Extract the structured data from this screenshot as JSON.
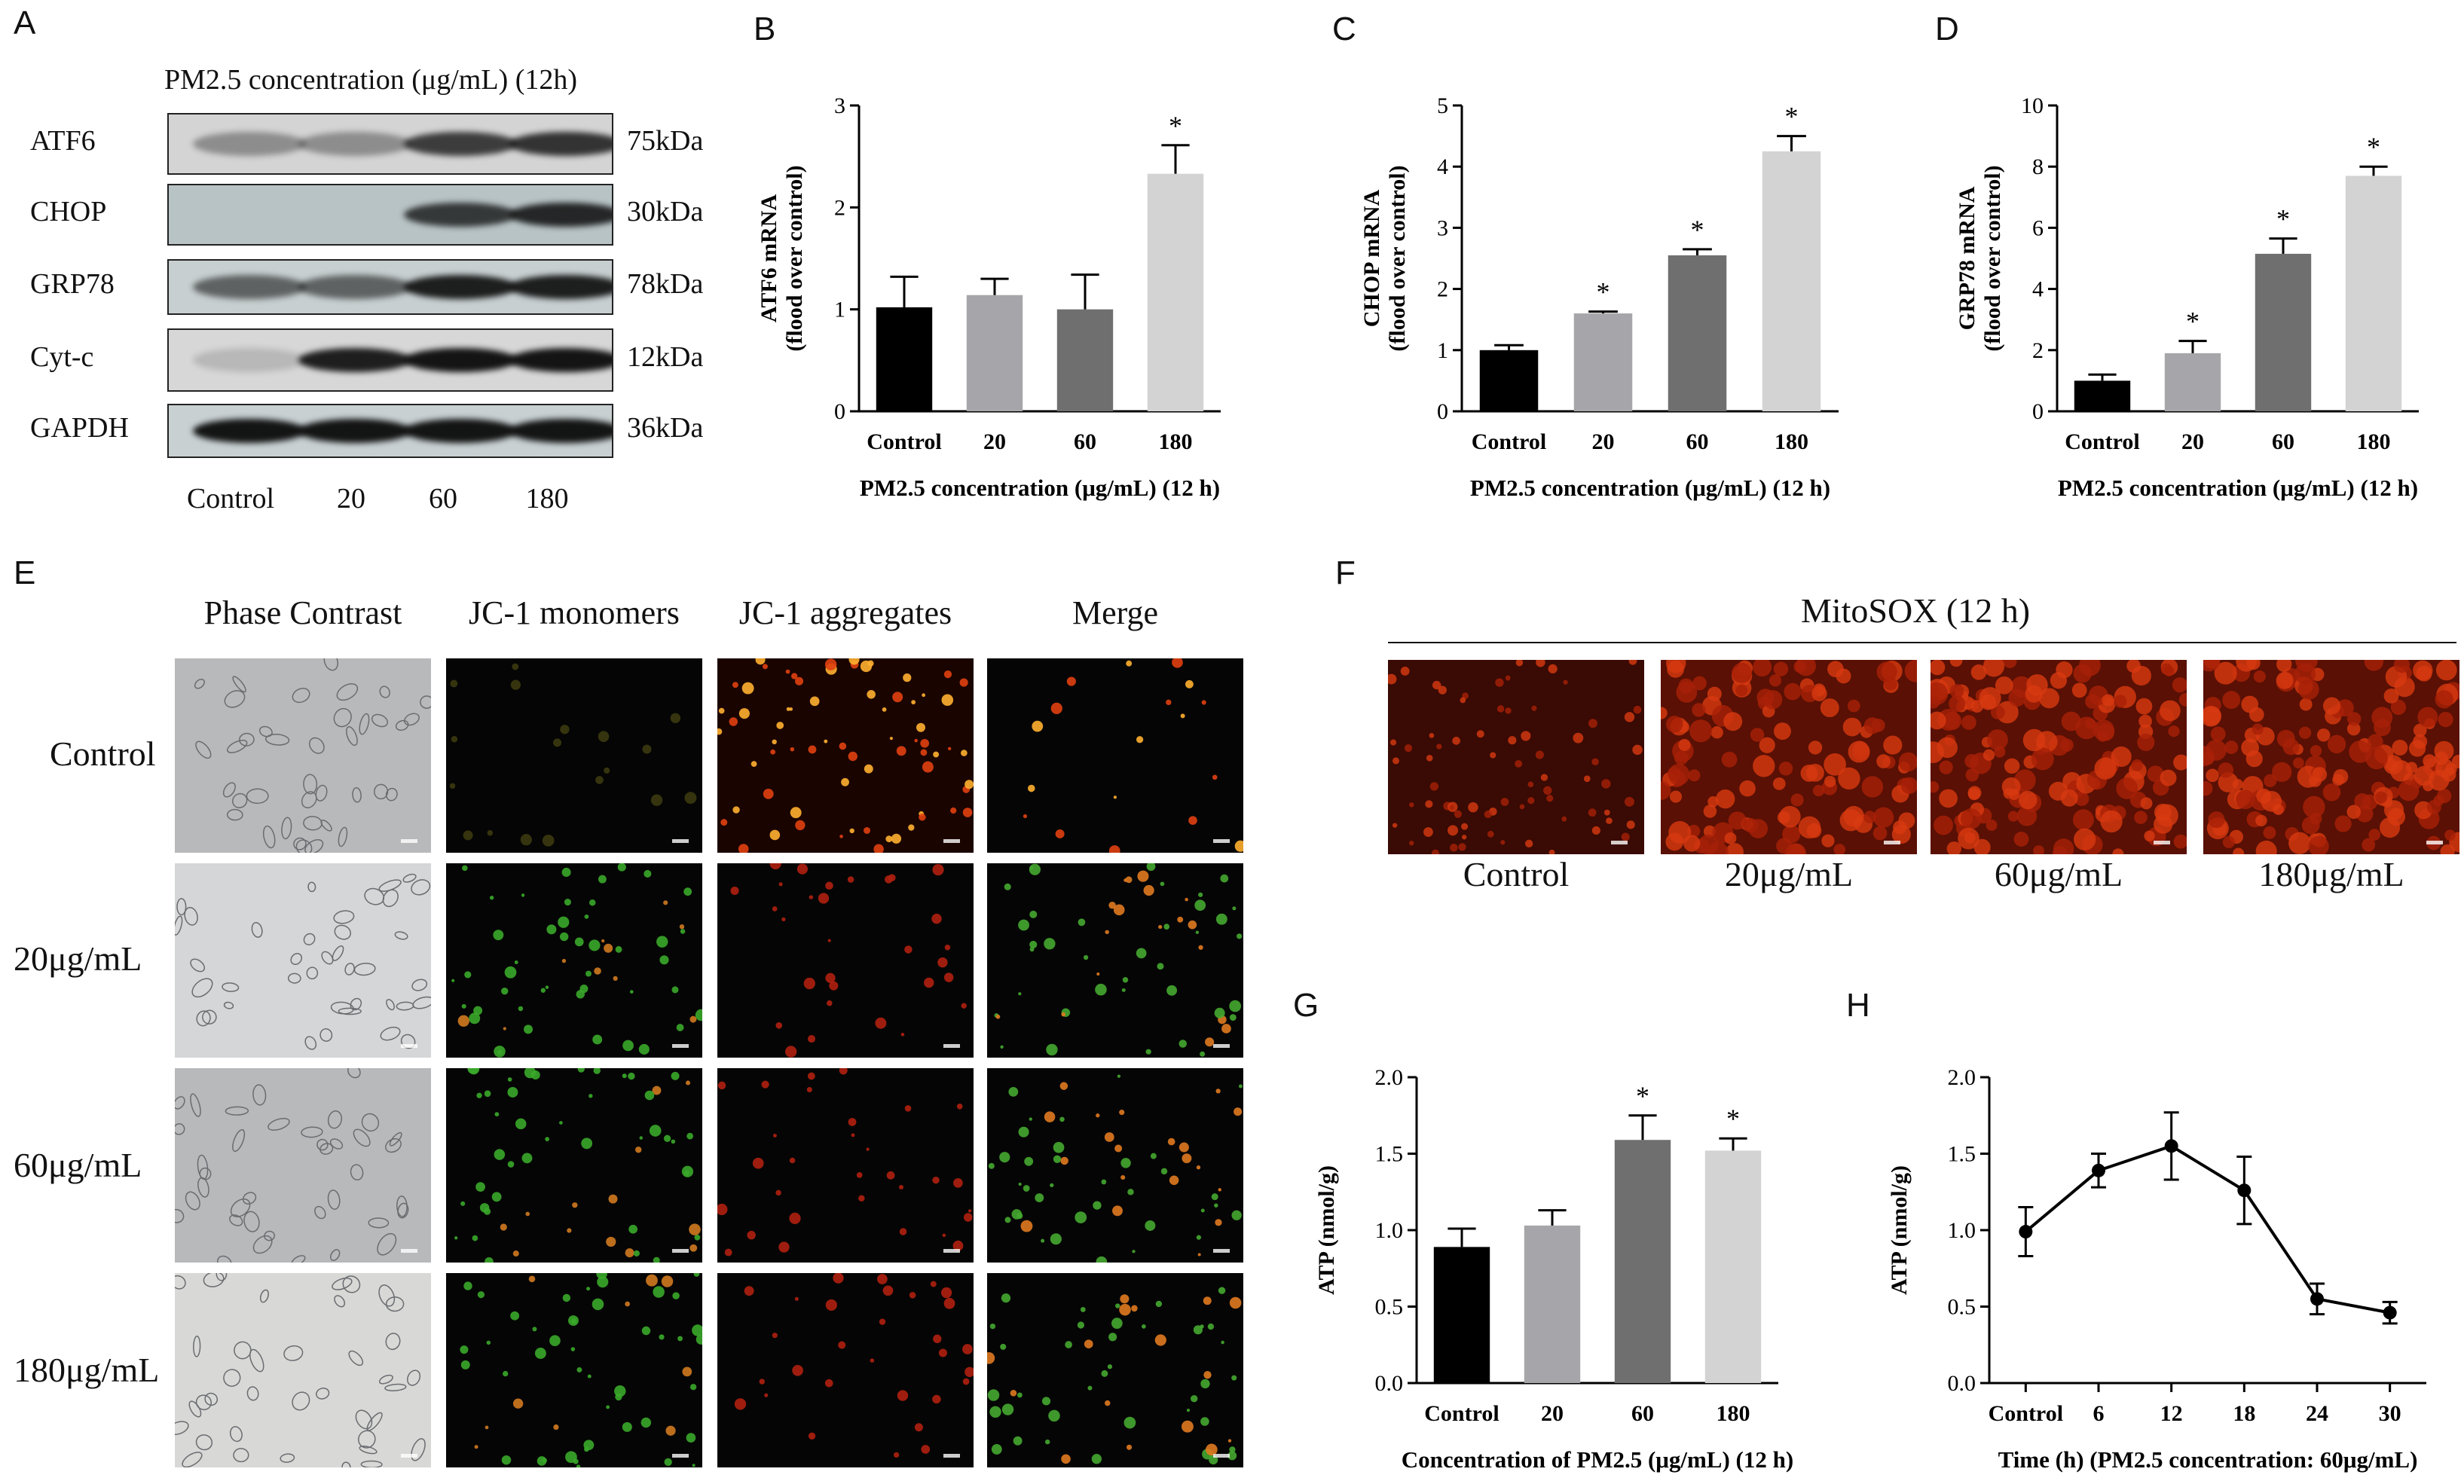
{
  "panels": {
    "A": "A",
    "B": "B",
    "C": "C",
    "D": "D",
    "E": "E",
    "F": "F",
    "G": "G",
    "H": "H"
  },
  "western_blot": {
    "title": "PM2.5 concentration (μg/mL) (12h)",
    "lanes": [
      "Control",
      "20",
      "60",
      "180"
    ],
    "rows": [
      {
        "protein": "ATF6",
        "kda": "75kDa",
        "intensity": [
          0.35,
          0.35,
          0.75,
          0.8
        ]
      },
      {
        "protein": "CHOP",
        "kda": "30kDa",
        "intensity": [
          0.0,
          0.0,
          0.75,
          0.85
        ]
      },
      {
        "protein": "GRP78",
        "kda": "78kDa",
        "intensity": [
          0.55,
          0.55,
          0.9,
          0.9
        ]
      },
      {
        "protein": "Cyt-c",
        "kda": "12kDa",
        "intensity": [
          0.15,
          0.9,
          0.95,
          0.95
        ]
      },
      {
        "protein": "GAPDH",
        "kda": "36kDa",
        "intensity": [
          0.95,
          0.95,
          0.95,
          0.95
        ]
      }
    ]
  },
  "jc1": {
    "columns": [
      "Phase Contrast",
      "JC-1 monomers",
      "JC-1 aggregates",
      "Merge"
    ],
    "rows": [
      "Control",
      "20μg/mL",
      "60μg/mL",
      "180μg/mL"
    ]
  },
  "mitosox": {
    "title": "MitoSOX (12 h)",
    "labels": [
      "Control",
      "20μg/mL",
      "60μg/mL",
      "180μg/mL"
    ]
  },
  "chart_data": [
    {
      "id": "B",
      "type": "bar",
      "categories": [
        "Control",
        "20",
        "60",
        "180"
      ],
      "values": [
        1.02,
        1.14,
        1.0,
        2.33
      ],
      "errors": [
        0.3,
        0.16,
        0.34,
        0.28
      ],
      "significant": [
        false,
        false,
        false,
        true
      ],
      "ylabel": "ATF6 mRNA",
      "ylabel2": "(flood over control)",
      "xlabel": "PM2.5 concentration (μg/mL) (12 h)",
      "ylim": [
        0,
        3
      ],
      "yticks": [
        0,
        1,
        2,
        3
      ],
      "colors": [
        "#000000",
        "#a6a6aa",
        "#6f6f6f",
        "#d3d3d3"
      ]
    },
    {
      "id": "C",
      "type": "bar",
      "categories": [
        "Control",
        "20",
        "60",
        "180"
      ],
      "values": [
        1.0,
        1.6,
        2.55,
        4.25
      ],
      "errors": [
        0.08,
        0.03,
        0.1,
        0.25
      ],
      "significant": [
        false,
        true,
        true,
        true
      ],
      "ylabel": "CHOP mRNA",
      "ylabel2": "(flood over control)",
      "xlabel": "PM2.5 concentration (μg/mL) (12 h)",
      "ylim": [
        0,
        5
      ],
      "yticks": [
        0,
        1,
        2,
        3,
        4,
        5
      ],
      "colors": [
        "#000000",
        "#a6a6aa",
        "#6f6f6f",
        "#d3d3d3"
      ]
    },
    {
      "id": "D",
      "type": "bar",
      "categories": [
        "Control",
        "20",
        "60",
        "180"
      ],
      "values": [
        1.0,
        1.9,
        5.15,
        7.7
      ],
      "errors": [
        0.2,
        0.4,
        0.5,
        0.3
      ],
      "significant": [
        false,
        true,
        true,
        true
      ],
      "ylabel": "GRP78 mRNA",
      "ylabel2": "(flood over control)",
      "xlabel": "PM2.5 concentration (μg/mL) (12 h)",
      "ylim": [
        0,
        10
      ],
      "yticks": [
        0,
        2,
        4,
        6,
        8,
        10
      ],
      "colors": [
        "#000000",
        "#a6a6aa",
        "#6f6f6f",
        "#d3d3d3"
      ]
    },
    {
      "id": "G",
      "type": "bar",
      "categories": [
        "Control",
        "20",
        "60",
        "180"
      ],
      "values": [
        0.89,
        1.03,
        1.59,
        1.52
      ],
      "errors": [
        0.12,
        0.1,
        0.16,
        0.08
      ],
      "significant": [
        false,
        false,
        true,
        true
      ],
      "ylabel": "ATP (nmol/g)",
      "ylabel2": "",
      "xlabel": "Concentration of PM2.5 (μg/mL) (12 h)",
      "ylim": [
        0,
        2.0
      ],
      "yticks": [
        "0.0",
        "0.5",
        "1.0",
        "1.5",
        "2.0"
      ],
      "colors": [
        "#000000",
        "#a6a6aa",
        "#6f6f6f",
        "#d3d3d3"
      ]
    },
    {
      "id": "H",
      "type": "line",
      "categories": [
        "Control",
        "6",
        "12",
        "18",
        "24",
        "30"
      ],
      "values": [
        0.99,
        1.39,
        1.55,
        1.26,
        0.55,
        0.46
      ],
      "errors": [
        0.16,
        0.11,
        0.22,
        0.22,
        0.1,
        0.07
      ],
      "ylabel": "ATP (nmol/g)",
      "xlabel": "Time (h) (PM2.5 concentration: 60μg/mL)",
      "ylim": [
        0,
        2.0
      ],
      "yticks": [
        "0.0",
        "0.5",
        "1.0",
        "1.5",
        "2.0"
      ],
      "colors": [
        "#000000"
      ]
    }
  ]
}
